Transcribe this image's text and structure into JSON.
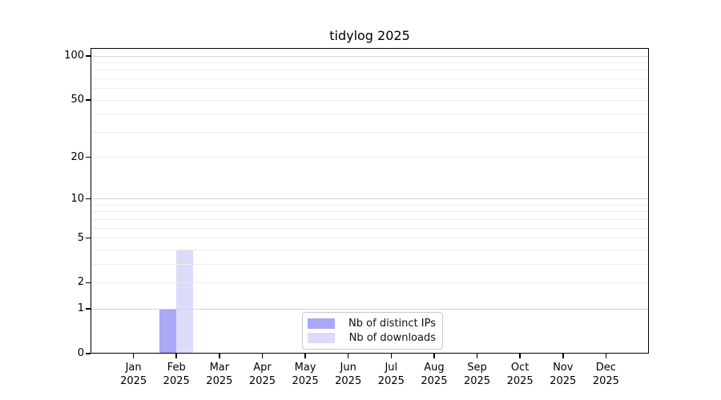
{
  "chart_data": {
    "type": "bar",
    "title": "tidylog 2025",
    "year": "2025",
    "categories": [
      "Jan",
      "Feb",
      "Mar",
      "Apr",
      "May",
      "Jun",
      "Jul",
      "Aug",
      "Sep",
      "Oct",
      "Nov",
      "Dec"
    ],
    "series": [
      {
        "name": "Nb of distinct IPs",
        "color": "#a9a9f5",
        "values": [
          0,
          1,
          0,
          0,
          0,
          0,
          0,
          0,
          0,
          0,
          0,
          0
        ]
      },
      {
        "name": "Nb of downloads",
        "color": "#dcdbf9",
        "values": [
          0,
          4,
          0,
          0,
          0,
          0,
          0,
          0,
          0,
          0,
          0,
          0
        ]
      }
    ],
    "y_axis": {
      "scale": "log1p",
      "ylim": [
        0,
        100
      ],
      "ticks": [
        0,
        1,
        2,
        5,
        10,
        20,
        50,
        100
      ],
      "minor_gridlines": [
        2,
        3,
        4,
        5,
        6,
        7,
        8,
        9,
        10,
        20,
        30,
        40,
        50,
        60,
        70,
        80,
        90,
        100
      ],
      "major_gridlines": [
        1,
        10,
        100
      ]
    },
    "legend": {
      "position": "bottom-center",
      "entries": [
        "Nb of distinct IPs",
        "Nb of downloads"
      ]
    },
    "grid": "horizontal-only",
    "colors": {
      "frame": "#000000",
      "minor_grid": "#ececec",
      "major_grid": "#d4d4d4",
      "legend_border": "#c9c9c9",
      "text": "#000000",
      "background": "#ffffff"
    }
  }
}
